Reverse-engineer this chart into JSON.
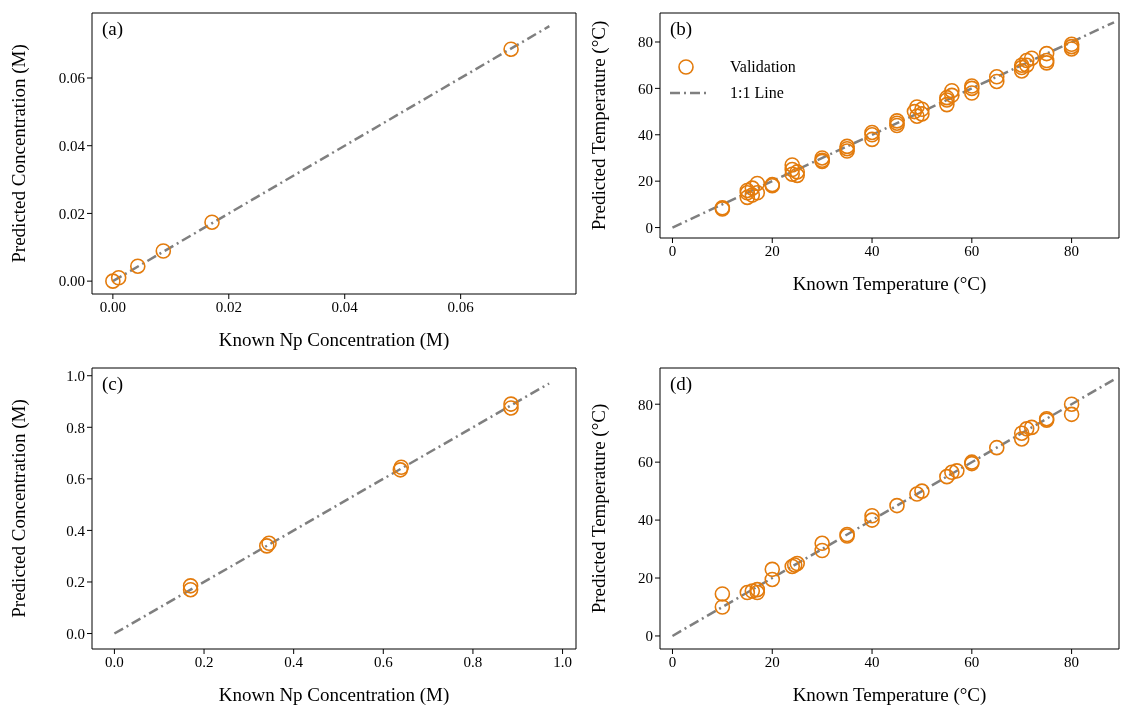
{
  "chart_data": [
    {
      "type": "scatter",
      "xlabel": "Known Np Concentration (M)",
      "ylabel": "Predicted Concentration (M)",
      "annotations": [
        "(a)"
      ],
      "xlim": [
        -0.0036,
        0.0799
      ],
      "ylim": [
        -0.0038,
        0.0792
      ],
      "xticks": [
        {
          "value": 0,
          "label": "0.00"
        },
        {
          "value": 0.02,
          "label": "0.02"
        },
        {
          "value": 0.04,
          "label": "0.04"
        },
        {
          "value": 0.06,
          "label": "0.06"
        }
      ],
      "yticks": [
        {
          "value": 0,
          "label": "0.00"
        },
        {
          "value": 0.02,
          "label": "0.02"
        },
        {
          "value": 0.04,
          "label": "0.04"
        },
        {
          "value": 0.06,
          "label": "0.06"
        }
      ],
      "grid": false,
      "legend": false,
      "marker": "circle",
      "series": [
        {
          "color": "#e37b0c",
          "x": [
            0,
            0.001,
            0.0043,
            0.0087,
            0.0171,
            0.0687
          ],
          "values": [
            0,
            0.001,
            0.0044,
            0.0089,
            0.0174,
            0.0685
          ]
        },
        {
          "type": "line",
          "color": "#7f7f7f",
          "line_style": "dashdot",
          "marker": "none",
          "x": [
            0,
            0.0753
          ],
          "values": [
            0,
            0.0753
          ]
        }
      ]
    },
    {
      "type": "scatter",
      "xlabel": "Known Temperature (°C)",
      "ylabel": "Predicted Temperature (°C)",
      "annotations": [
        "(b)"
      ],
      "xlim": [
        -2.5,
        89.5
      ],
      "ylim": [
        -4.5,
        92.5
      ],
      "xticks": [
        0,
        20,
        40,
        60,
        80
      ],
      "yticks": [
        0,
        20,
        40,
        60,
        80
      ],
      "grid": false,
      "legend": "top left",
      "marker": "circle",
      "series": [
        {
          "name": "Validation",
          "color": "#e37b0c",
          "x": [
            10,
            10,
            15,
            15,
            15,
            16,
            16,
            17,
            17,
            20,
            20,
            24,
            24,
            24,
            25,
            25,
            30,
            30,
            30,
            35,
            35,
            35,
            40,
            40,
            40,
            45,
            45,
            45,
            48.5,
            49,
            49,
            50,
            50,
            55,
            55,
            55,
            56,
            56,
            60,
            60,
            60,
            65,
            65,
            70,
            70,
            70,
            71,
            71,
            72,
            75,
            75,
            75,
            80,
            80,
            80
          ],
          "values": [
            8.5,
            8,
            13,
            15,
            16,
            14,
            17,
            19,
            15,
            18.5,
            18,
            23,
            25,
            27,
            24,
            22.5,
            29,
            30,
            28.5,
            33,
            35,
            34,
            38,
            40,
            41,
            44,
            46,
            45,
            50,
            52,
            48,
            49,
            51,
            53,
            55,
            56,
            59,
            57,
            58,
            60,
            61,
            63,
            65,
            67.5,
            69,
            70,
            72,
            70,
            73,
            75,
            72,
            71,
            79,
            77,
            78
          ]
        },
        {
          "type": "line",
          "name": "1:1 Line",
          "color": "#7f7f7f",
          "line_style": "dashdot",
          "marker": "none",
          "x": [
            0,
            88.5
          ],
          "values": [
            0,
            88.5
          ]
        }
      ]
    },
    {
      "type": "scatter",
      "xlabel": "Known Np Concentration (M)",
      "ylabel": "Predicted Concentration (M)",
      "annotations": [
        "(c)"
      ],
      "xlim": [
        -0.05,
        1.03
      ],
      "ylim": [
        -0.06,
        1.03
      ],
      "xticks": [
        {
          "value": 0,
          "label": "0.0"
        },
        {
          "value": 0.2,
          "label": "0.2"
        },
        {
          "value": 0.4,
          "label": "0.4"
        },
        {
          "value": 0.6,
          "label": "0.6"
        },
        {
          "value": 0.8,
          "label": "0.8"
        },
        {
          "value": 1,
          "label": "1.0"
        }
      ],
      "yticks": [
        {
          "value": 0,
          "label": "0.0"
        },
        {
          "value": 0.2,
          "label": "0.2"
        },
        {
          "value": 0.4,
          "label": "0.4"
        },
        {
          "value": 0.6,
          "label": "0.6"
        },
        {
          "value": 0.8,
          "label": "0.8"
        },
        {
          "value": 1,
          "label": "1.0"
        }
      ],
      "grid": false,
      "legend": false,
      "marker": "circle",
      "series": [
        {
          "color": "#e37b0c",
          "x": [
            0.17,
            0.17,
            0.34,
            0.345,
            0.638,
            0.64,
            0.885,
            0.885
          ],
          "values": [
            0.17,
            0.185,
            0.34,
            0.35,
            0.635,
            0.645,
            0.875,
            0.89
          ]
        },
        {
          "type": "line",
          "color": "#7f7f7f",
          "line_style": "dashdot",
          "marker": "none",
          "x": [
            0,
            0.97
          ],
          "values": [
            0,
            0.97
          ]
        }
      ]
    },
    {
      "type": "scatter",
      "xlabel": "Known Temperature (°C)",
      "ylabel": "Predicted Temperature (°C)",
      "annotations": [
        "(d)"
      ],
      "xlim": [
        -2.5,
        89.5
      ],
      "ylim": [
        -4.5,
        92.5
      ],
      "xticks": [
        0,
        20,
        40,
        60,
        80
      ],
      "yticks": [
        0,
        20,
        40,
        60,
        80
      ],
      "grid": false,
      "legend": false,
      "marker": "circle",
      "series": [
        {
          "color": "#e37b0c",
          "x": [
            10,
            10,
            15,
            16,
            17,
            17,
            20,
            20,
            24,
            25,
            24.5,
            30,
            30,
            35,
            35,
            40,
            40,
            45,
            49,
            50,
            55,
            56,
            57,
            60,
            60,
            65,
            70,
            70,
            71,
            72,
            75,
            75,
            80,
            80
          ],
          "values": [
            14.5,
            10,
            15,
            15.5,
            16,
            15,
            23,
            19.5,
            24,
            25,
            24.5,
            32,
            29.5,
            35,
            34.5,
            41.5,
            40,
            45,
            49,
            50,
            55,
            56.5,
            57,
            59.5,
            60,
            65,
            68,
            70,
            71.5,
            72,
            75,
            74.5,
            80,
            76.5
          ]
        },
        {
          "type": "line",
          "color": "#7f7f7f",
          "line_style": "dashdot",
          "marker": "none",
          "x": [
            0,
            88.5
          ],
          "values": [
            0,
            88.5
          ]
        }
      ]
    }
  ]
}
